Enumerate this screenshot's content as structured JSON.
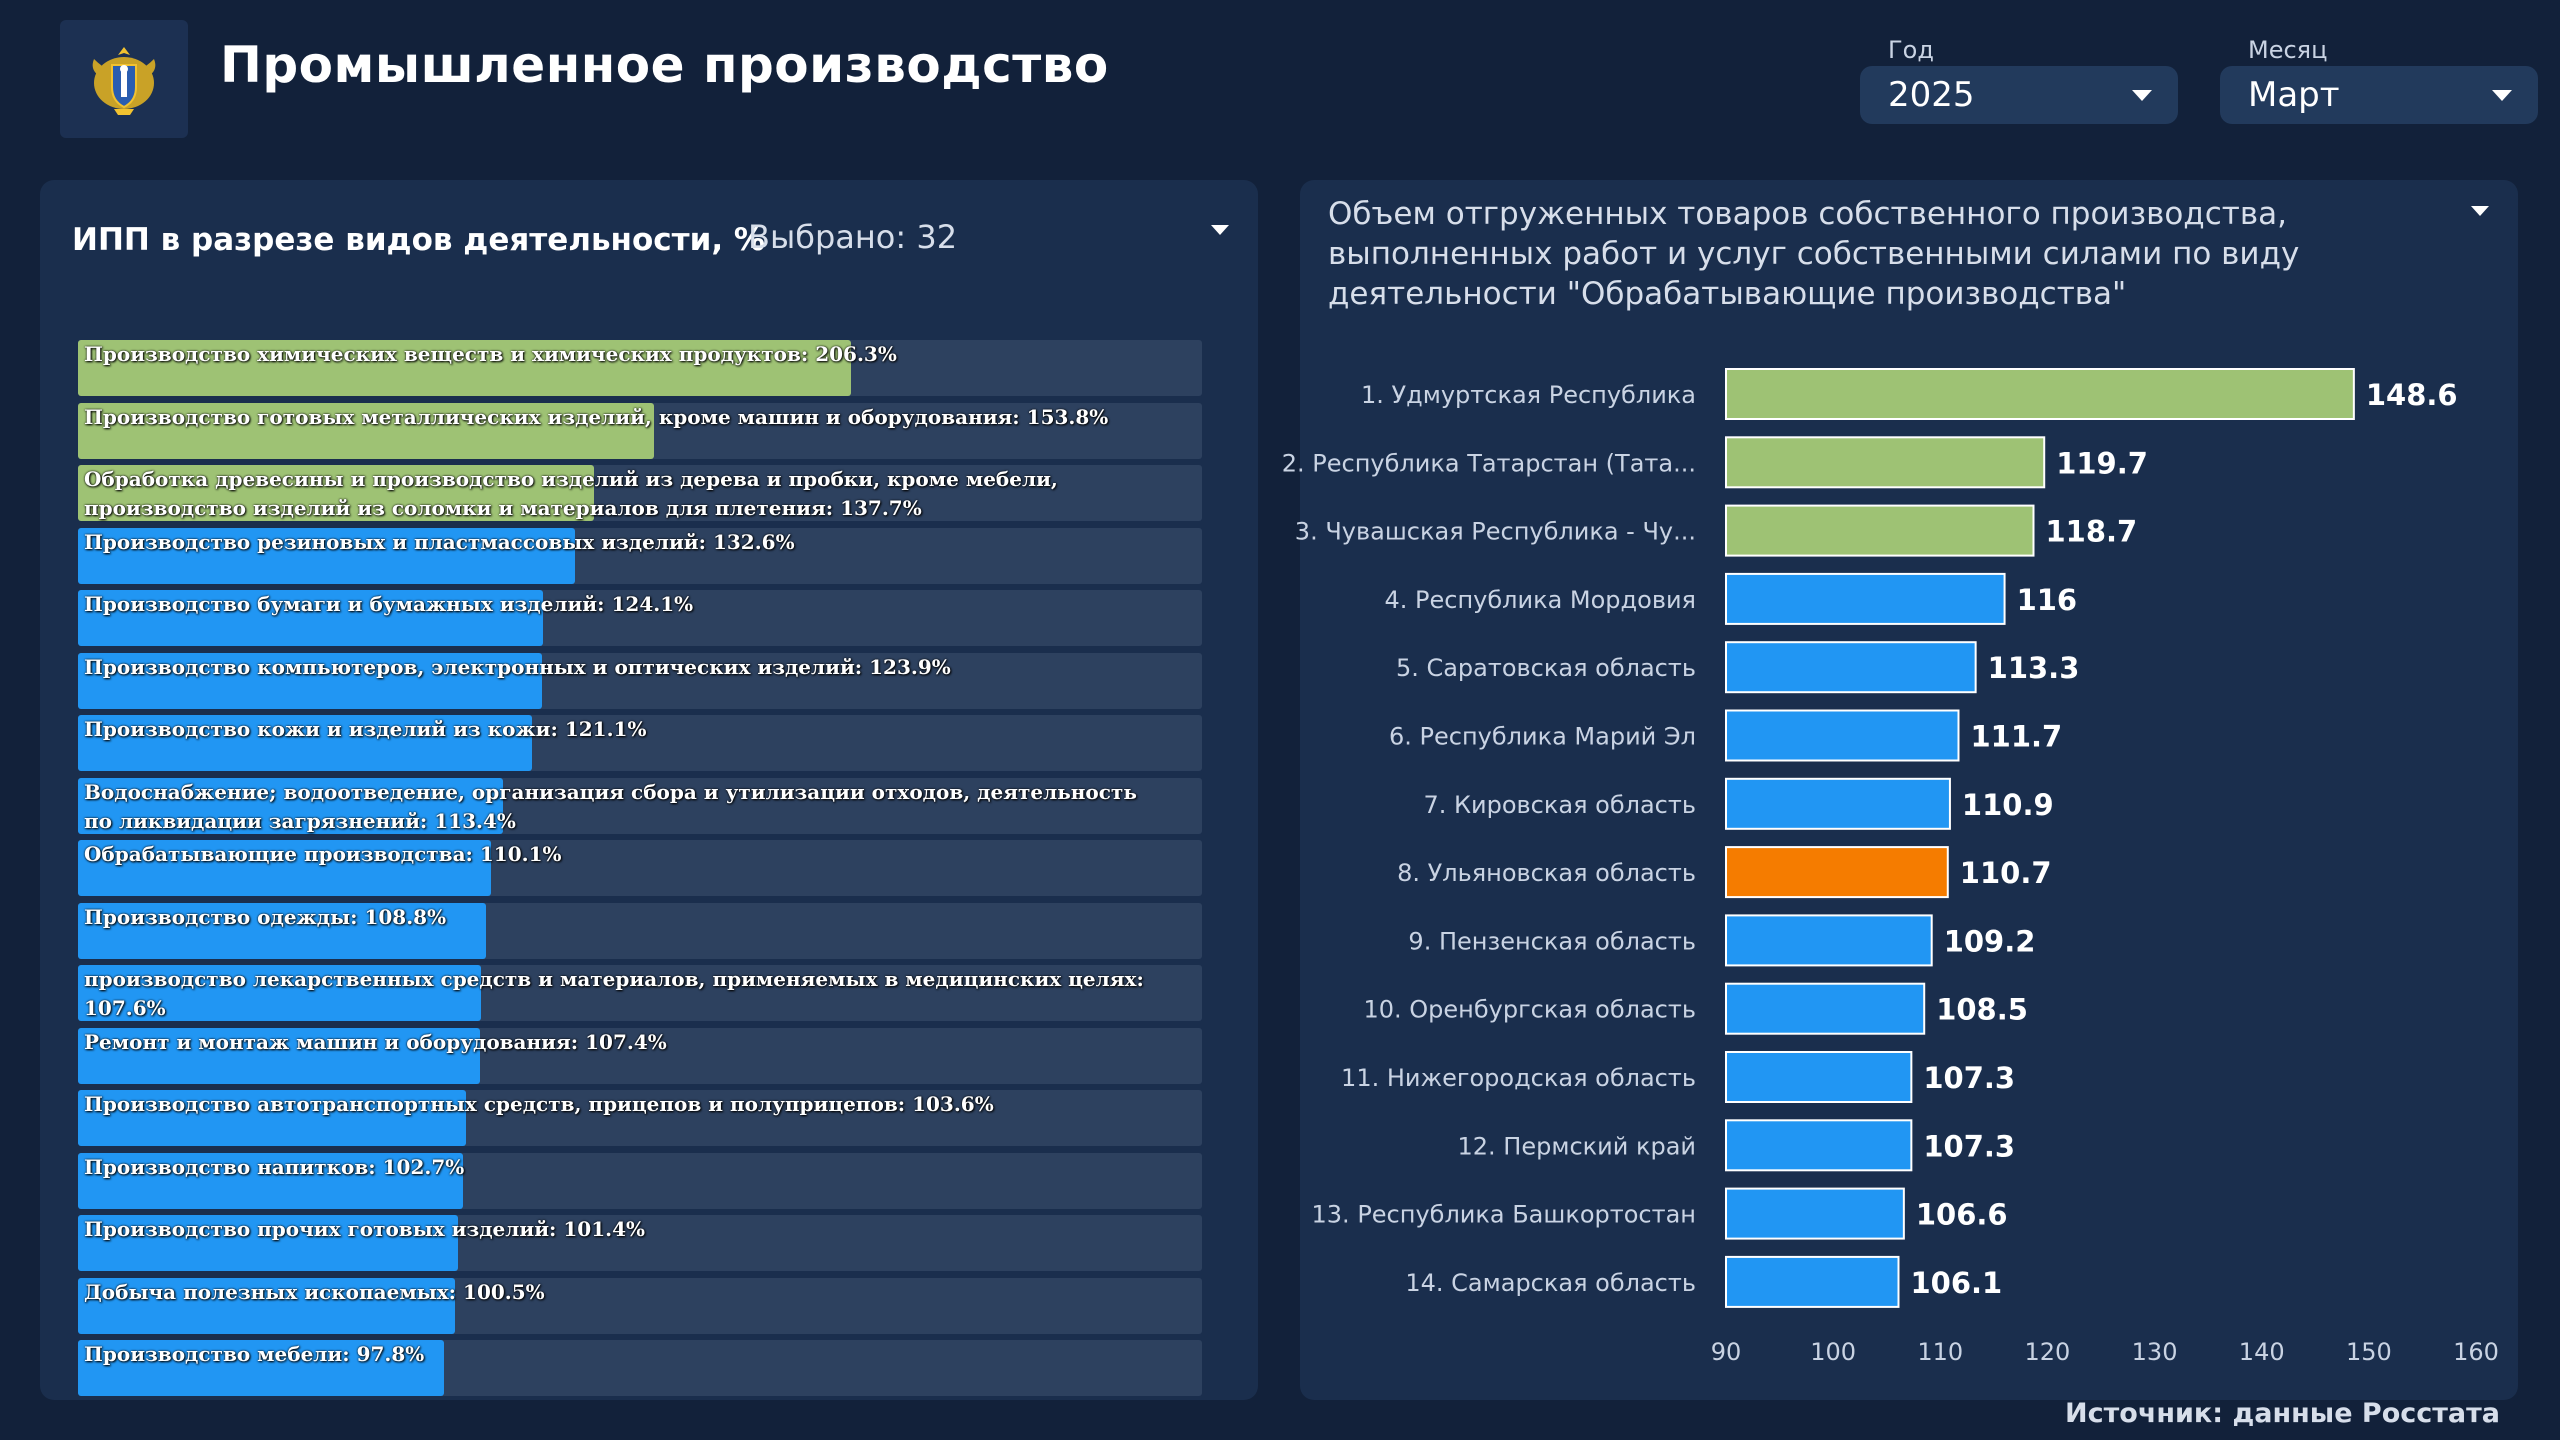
{
  "header": {
    "title": "Промышленное производство",
    "logo_icon": "coat-of-arms-icon"
  },
  "filters": {
    "year": {
      "label": "Год",
      "value": "2025"
    },
    "month": {
      "label": "Месяц",
      "value": "Март"
    }
  },
  "left_panel": {
    "title": "ИПП в разрезе видов деятельности, %",
    "selected": "Выбрано: 32"
  },
  "right_panel": {
    "title": "Объем отгруженных товаров собственного производства, выполненных работ и услуг собственными силами по виду деятельности \"Обрабатывающие производства\""
  },
  "footer": {
    "source": "Источник: данные Росстата"
  },
  "colors": {
    "green": "#9ec274",
    "blue": "#2196f3",
    "orange": "#f57c00",
    "track": "#2d415f",
    "background": "#12213a",
    "panel": "#1a2e4d"
  },
  "chart_data": [
    {
      "type": "bar",
      "orientation": "horizontal",
      "title": "ИПП в разрезе видов деятельности, %",
      "xlim": [
        0,
        300
      ],
      "items": [
        {
          "label": "Производство химических веществ и химических продуктов: 206.3%",
          "value": 206.3,
          "color": "green"
        },
        {
          "label": "Производство готовых металлических изделий, кроме машин и оборудования: 153.8%",
          "value": 153.8,
          "color": "green"
        },
        {
          "label": "Обработка древесины и производство изделий из дерева и пробки, кроме мебели, производство изделий из соломки и материалов для плетения: 137.7%",
          "value": 137.7,
          "color": "green"
        },
        {
          "label": "Производство резиновых и пластмассовых изделий: 132.6%",
          "value": 132.6,
          "color": "blue"
        },
        {
          "label": "Производство бумаги и бумажных изделий: 124.1%",
          "value": 124.1,
          "color": "blue"
        },
        {
          "label": "Производство компьютеров, электронных и оптических изделий: 123.9%",
          "value": 123.9,
          "color": "blue"
        },
        {
          "label": "Производство кожи и изделий из кожи: 121.1%",
          "value": 121.1,
          "color": "blue"
        },
        {
          "label": "Водоснабжение; водоотведение, организация сбора и утилизации отходов, деятельность по ликвидации загрязнений: 113.4%",
          "value": 113.4,
          "color": "blue"
        },
        {
          "label": "Обрабатывающие производства: 110.1%",
          "value": 110.1,
          "color": "blue"
        },
        {
          "label": "Производство одежды: 108.8%",
          "value": 108.8,
          "color": "blue"
        },
        {
          "label": "производство лекарственных средств и материалов, применяемых в медицинских целях: 107.6%",
          "value": 107.6,
          "color": "blue"
        },
        {
          "label": "Ремонт и монтаж машин и оборудования: 107.4%",
          "value": 107.4,
          "color": "blue"
        },
        {
          "label": "Производство автотранспортных средств, прицепов и полуприцепов: 103.6%",
          "value": 103.6,
          "color": "blue"
        },
        {
          "label": "Производство напитков: 102.7%",
          "value": 102.7,
          "color": "blue"
        },
        {
          "label": "Производство прочих готовых изделий: 101.4%",
          "value": 101.4,
          "color": "blue"
        },
        {
          "label": "Добыча полезных ископаемых: 100.5%",
          "value": 100.5,
          "color": "blue"
        },
        {
          "label": "Производство мебели: 97.8%",
          "value": 97.8,
          "color": "blue"
        }
      ]
    },
    {
      "type": "bar",
      "orientation": "horizontal",
      "title": "Объем отгруженных товаров собственного производства, выполненных работ и услуг собственными силами по виду деятельности \"Обрабатывающие производства\"",
      "xlim": [
        90,
        160
      ],
      "xticks": [
        90,
        100,
        110,
        120,
        130,
        140,
        150,
        160
      ],
      "categories": [
        "1. Удмуртская Республика",
        "2. Республика Татарстан (Тата...",
        "3. Чувашская Республика - Чу...",
        "4. Республика Мордовия",
        "5. Саратовская область",
        "6. Республика Марий Эл",
        "7. Кировская область",
        "8. Ульяновская область",
        "9. Пензенская область",
        "10. Оренбургская область",
        "11. Нижегородская область",
        "12. Пермский край",
        "13. Республика Башкортостан",
        "14. Самарская область"
      ],
      "values": [
        148.6,
        119.7,
        118.7,
        116,
        113.3,
        111.7,
        110.9,
        110.7,
        109.2,
        108.5,
        107.3,
        107.3,
        106.6,
        106.1
      ],
      "value_labels": [
        "148.6",
        "119.7",
        "118.7",
        "116",
        "113.3",
        "111.7",
        "110.9",
        "110.7",
        "109.2",
        "108.5",
        "107.3",
        "107.3",
        "106.6",
        "106.1"
      ],
      "colors": [
        "green",
        "green",
        "green",
        "blue",
        "blue",
        "blue",
        "blue",
        "orange",
        "blue",
        "blue",
        "blue",
        "blue",
        "blue",
        "blue"
      ]
    }
  ]
}
